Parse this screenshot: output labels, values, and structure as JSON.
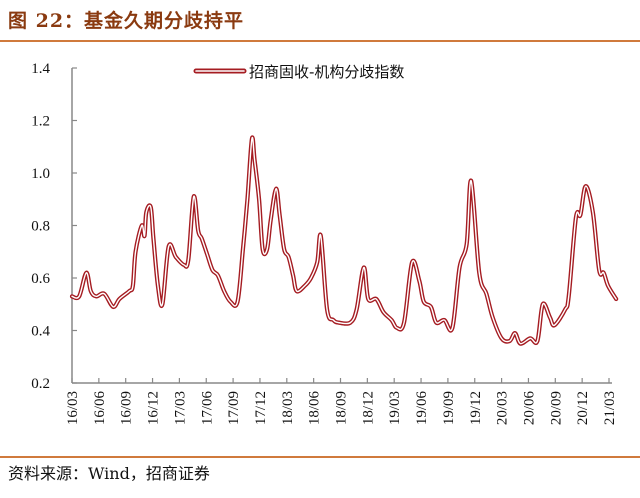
{
  "title": "图 22：基金久期分歧持平",
  "source": "资料来源：Wind，招商证券",
  "colors": {
    "line": "#a51c22",
    "title": "#8a3a10",
    "rule": "#d07a3c"
  },
  "chart_data": {
    "type": "line",
    "title": "",
    "xlabel": "",
    "ylabel": "",
    "ylim": [
      0.2,
      1.4
    ],
    "yticks": [
      "0.2",
      "0.4",
      "0.6",
      "0.8",
      "1.0",
      "1.2",
      "1.4"
    ],
    "xticks": [
      "16/03",
      "16/06",
      "16/09",
      "16/12",
      "17/03",
      "17/06",
      "17/09",
      "17/12",
      "18/03",
      "18/06",
      "18/09",
      "18/12",
      "19/03",
      "19/06",
      "19/09",
      "19/12",
      "20/03",
      "20/06",
      "20/09",
      "20/12",
      "21/03"
    ],
    "x_unit": "months since 2016/03",
    "legend": {
      "position": "top-center",
      "entries": [
        "招商固收-机构分歧指数"
      ]
    },
    "grid": false,
    "series": [
      {
        "name": "招商固收-机构分歧指数",
        "x": [
          0,
          0.8,
          1.6,
          2.1,
          2.7,
          3.6,
          4.6,
          5.3,
          6.4,
          6.8,
          7.1,
          7.8,
          8.1,
          8.3,
          8.8,
          9.1,
          9.6,
          10.1,
          10.8,
          11.6,
          12.5,
          13.0,
          13.6,
          14.1,
          14.5,
          15.1,
          15.7,
          16.3,
          17.0,
          17.7,
          18.5,
          19.1,
          19.6,
          20.1,
          20.4,
          20.9,
          21.3,
          21.8,
          22.2,
          22.8,
          23.2,
          23.7,
          24.2,
          24.7,
          25.1,
          26.0,
          26.7,
          27.4,
          27.8,
          28.5,
          29.2,
          29.8,
          31.1,
          31.8,
          32.6,
          33.1,
          34.0,
          34.8,
          35.7,
          36.3,
          37.1,
          38.0,
          38.8,
          39.3,
          40.1,
          40.7,
          41.6,
          42.5,
          43.3,
          44.1,
          44.6,
          45.5,
          46.3,
          47.0,
          48.0,
          48.9,
          49.5,
          50.1,
          51.2,
          52.0,
          52.6,
          53.4,
          53.9,
          55.1,
          55.5,
          56.3,
          56.8,
          57.4,
          58.2,
          58.9,
          59.4,
          59.9,
          60.8
        ],
        "values": [
          0.53,
          0.53,
          0.62,
          0.55,
          0.53,
          0.54,
          0.49,
          0.52,
          0.55,
          0.57,
          0.7,
          0.8,
          0.76,
          0.85,
          0.87,
          0.75,
          0.57,
          0.5,
          0.72,
          0.68,
          0.65,
          0.67,
          0.91,
          0.78,
          0.75,
          0.69,
          0.63,
          0.61,
          0.55,
          0.51,
          0.51,
          0.71,
          0.9,
          1.13,
          1.05,
          0.9,
          0.71,
          0.71,
          0.82,
          0.94,
          0.84,
          0.71,
          0.68,
          0.61,
          0.55,
          0.57,
          0.6,
          0.66,
          0.76,
          0.48,
          0.44,
          0.43,
          0.43,
          0.48,
          0.64,
          0.52,
          0.52,
          0.47,
          0.44,
          0.41,
          0.43,
          0.66,
          0.59,
          0.51,
          0.49,
          0.43,
          0.44,
          0.41,
          0.64,
          0.73,
          0.97,
          0.62,
          0.54,
          0.45,
          0.37,
          0.36,
          0.39,
          0.35,
          0.37,
          0.36,
          0.5,
          0.45,
          0.42,
          0.48,
          0.53,
          0.83,
          0.84,
          0.95,
          0.85,
          0.63,
          0.62,
          0.57,
          0.52
        ]
      }
    ]
  }
}
